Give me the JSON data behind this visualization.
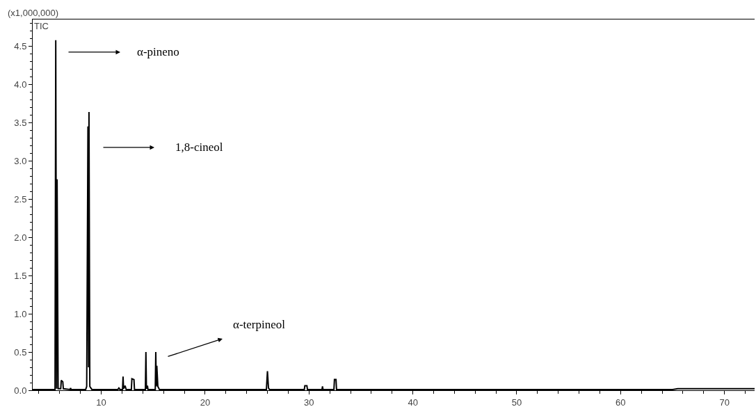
{
  "chart_data": {
    "type": "line",
    "x": [
      3.4,
      5.55,
      5.62,
      5.7,
      5.75,
      5.85,
      6.1,
      6.15,
      6.3,
      6.35,
      7.0,
      7.05,
      7.1,
      8.5,
      8.6,
      8.72,
      8.78,
      8.82,
      8.9,
      9.1,
      11.6,
      11.7,
      11.8,
      12.05,
      12.1,
      12.15,
      12.3,
      12.4,
      12.9,
      12.95,
      13.15,
      13.2,
      14.25,
      14.3,
      14.35,
      14.45,
      14.5,
      15.2,
      15.25,
      15.3,
      15.35,
      15.45,
      15.6,
      25.9,
      26.0,
      26.1,
      26.2,
      29.55,
      29.6,
      29.8,
      29.85,
      31.25,
      31.3,
      31.35,
      32.4,
      32.45,
      32.6,
      32.65,
      65.0,
      65.5,
      72.9
    ],
    "series": [
      {
        "color": "#000000",
        "values": [
          0.01,
          0.01,
          4.58,
          0.02,
          2.76,
          0.02,
          0.02,
          0.13,
          0.11,
          0.02,
          0.01,
          0.03,
          0.01,
          0.01,
          0.05,
          3.45,
          0.3,
          3.64,
          0.05,
          0.01,
          0.01,
          0.03,
          0.01,
          0.01,
          0.18,
          0.02,
          0.06,
          0.01,
          0.01,
          0.15,
          0.14,
          0.01,
          0.01,
          0.5,
          0.02,
          0.06,
          0.01,
          0.01,
          0.5,
          0.05,
          0.32,
          0.05,
          0.01,
          0.01,
          0.25,
          0.03,
          0.01,
          0.01,
          0.06,
          0.06,
          0.01,
          0.01,
          0.05,
          0.01,
          0.01,
          0.14,
          0.14,
          0.01,
          0.01,
          0.02,
          0.02
        ]
      }
    ],
    "xlim": [
      3.4,
      72.9
    ],
    "xticks": [
      10,
      20,
      30,
      40,
      50,
      60,
      70
    ],
    "ylim": [
      0,
      4.85
    ],
    "yticks": [
      {
        "value": 0,
        "label": "0.0"
      },
      {
        "value": 0.5,
        "label": "0.5"
      },
      {
        "value": 1,
        "label": "1.0"
      },
      {
        "value": 1.5,
        "label": "1.5"
      },
      {
        "value": 2,
        "label": "2.0"
      },
      {
        "value": 2.5,
        "label": "2.5"
      },
      {
        "value": 3,
        "label": "3.0"
      },
      {
        "value": 3.5,
        "label": "3.5"
      },
      {
        "value": 4,
        "label": "4.0"
      },
      {
        "value": 4.5,
        "label": "4.5"
      }
    ],
    "annotations": [
      "(x1,000,000)",
      "TIC",
      "α-pineno",
      "1,8-cineol",
      "α-terpineol"
    ],
    "marker": "none",
    "line_style": "solid"
  }
}
